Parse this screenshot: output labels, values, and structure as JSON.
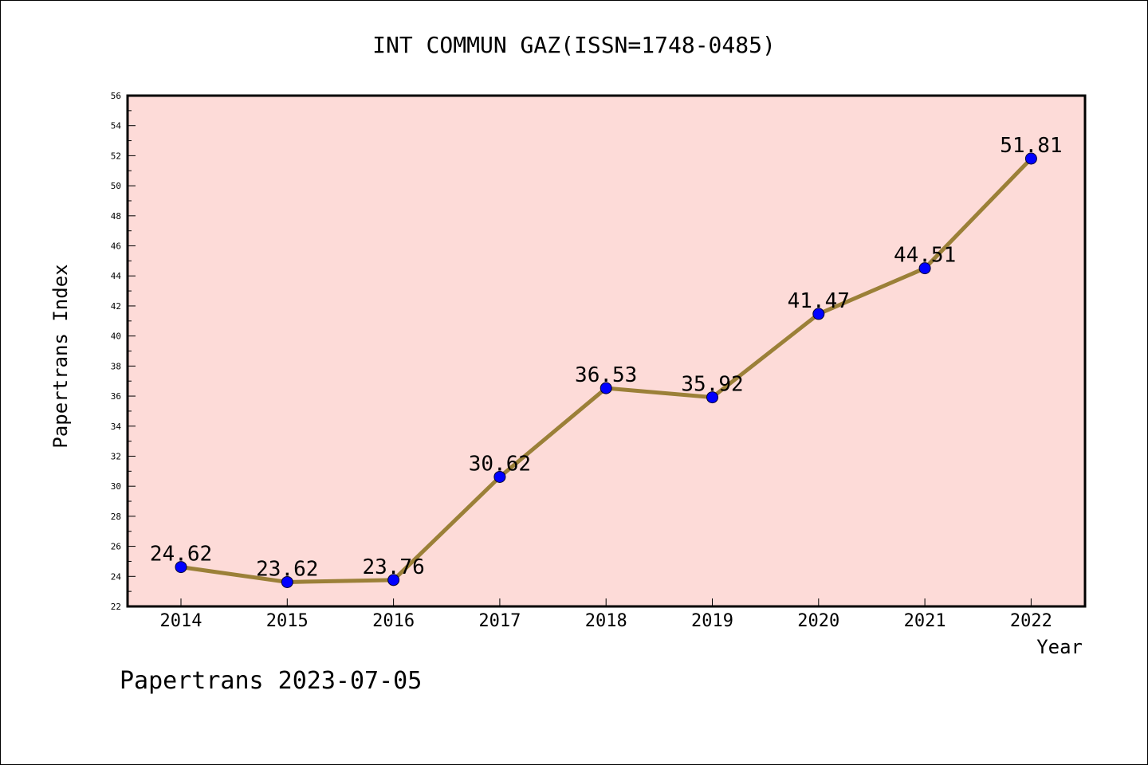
{
  "chart_data": {
    "type": "line",
    "title": "INT COMMUN GAZ(ISSN=1748-0485)",
    "xlabel": "Year",
    "ylabel": "Papertrans Index",
    "categories": [
      "2014",
      "2015",
      "2016",
      "2017",
      "2018",
      "2019",
      "2020",
      "2021",
      "2022"
    ],
    "series": [
      {
        "values": [
          24.62,
          23.62,
          23.76,
          30.62,
          36.53,
          35.92,
          41.47,
          44.51,
          51.81
        ]
      }
    ],
    "data_labels": [
      "24.62",
      "23.62",
      "23.76",
      "30.62",
      "36.53",
      "35.92",
      "41.47",
      "44.51",
      "51.81"
    ],
    "ylim": [
      22,
      56
    ],
    "yticks": [
      "22",
      "24",
      "26",
      "28",
      "30",
      "32",
      "34",
      "36",
      "38",
      "40",
      "42",
      "44",
      "46",
      "48",
      "50",
      "52",
      "54",
      "56"
    ],
    "grid": false,
    "legend": "none",
    "footer": "Papertrans 2023-07-05",
    "colors": {
      "plot_background": "#fddbd8",
      "line": "#9b8038",
      "marker": "#0000ff",
      "axis": "#000000"
    }
  }
}
